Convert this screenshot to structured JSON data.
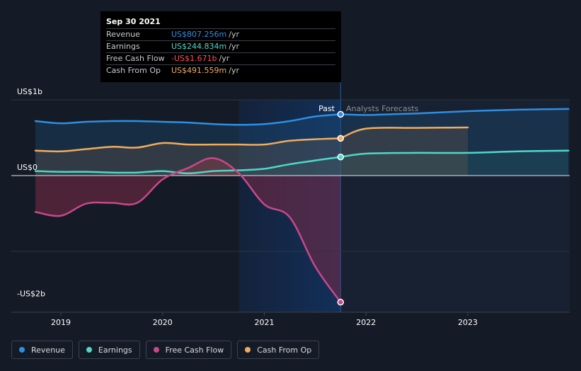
{
  "tooltip": {
    "date": "Sep 30 2021",
    "rows": [
      {
        "label": "Revenue",
        "value": "US$807.256m",
        "unit": "/yr",
        "color": "#2d8fe3"
      },
      {
        "label": "Earnings",
        "value": "US$244.834m",
        "unit": "/yr",
        "color": "#4fd8c9"
      },
      {
        "label": "Free Cash Flow",
        "value": "-US$1.671b",
        "unit": "/yr",
        "color": "#ff4d5e"
      },
      {
        "label": "Cash From Op",
        "value": "US$491.559m",
        "unit": "/yr",
        "color": "#f0ac5d"
      }
    ]
  },
  "labels": {
    "past": "Past",
    "forecast": "Analysts Forecasts"
  },
  "legend": [
    {
      "label": "Revenue",
      "color": "#2d8fe3"
    },
    {
      "label": "Earnings",
      "color": "#4fd8c9"
    },
    {
      "label": "Free Cash Flow",
      "color": "#c8488b"
    },
    {
      "label": "Cash From Op",
      "color": "#f0ac5d"
    }
  ],
  "chart_data": {
    "type": "line",
    "title": "",
    "xlabel": "",
    "ylabel": "",
    "xlim": [
      2018.7,
      2023.99
    ],
    "ylim": [
      -1.8,
      1.0
    ],
    "y_ticks": [
      {
        "value": 1.0,
        "label": "US$1b"
      },
      {
        "value": 0,
        "label": "US$0"
      },
      {
        "value": -1.67,
        "label": "-US$2b"
      }
    ],
    "x_ticks": [
      {
        "value": 2019,
        "label": "2019"
      },
      {
        "value": 2020,
        "label": "2020"
      },
      {
        "value": 2021,
        "label": "2021"
      },
      {
        "value": 2022,
        "label": "2022"
      },
      {
        "value": 2023,
        "label": "2023"
      }
    ],
    "gridlines": [
      1.0,
      0,
      -1.0
    ],
    "past_end": 2021.75,
    "highlight_start": 2020.75,
    "series": [
      {
        "name": "Revenue",
        "color": "#2d8fe3",
        "past": [
          [
            2018.75,
            0.72
          ],
          [
            2019.0,
            0.69
          ],
          [
            2019.25,
            0.71
          ],
          [
            2019.5,
            0.72
          ],
          [
            2019.75,
            0.72
          ],
          [
            2020.0,
            0.71
          ],
          [
            2020.25,
            0.7
          ],
          [
            2020.5,
            0.68
          ],
          [
            2020.75,
            0.67
          ],
          [
            2021.0,
            0.68
          ],
          [
            2021.25,
            0.72
          ],
          [
            2021.5,
            0.78
          ],
          [
            2021.75,
            0.81
          ]
        ],
        "forecast": [
          [
            2021.75,
            0.81
          ],
          [
            2022.0,
            0.8
          ],
          [
            2022.25,
            0.81
          ],
          [
            2022.5,
            0.82
          ],
          [
            2023.0,
            0.85
          ],
          [
            2023.5,
            0.87
          ],
          [
            2023.99,
            0.88
          ]
        ]
      },
      {
        "name": "Earnings",
        "color": "#4fd8c9",
        "past": [
          [
            2018.75,
            0.06
          ],
          [
            2019.0,
            0.05
          ],
          [
            2019.25,
            0.05
          ],
          [
            2019.5,
            0.04
          ],
          [
            2019.75,
            0.04
          ],
          [
            2020.0,
            0.06
          ],
          [
            2020.25,
            0.03
          ],
          [
            2020.5,
            0.06
          ],
          [
            2020.75,
            0.07
          ],
          [
            2021.0,
            0.09
          ],
          [
            2021.25,
            0.15
          ],
          [
            2021.5,
            0.2
          ],
          [
            2021.75,
            0.245
          ]
        ],
        "forecast": [
          [
            2021.75,
            0.245
          ],
          [
            2022.0,
            0.29
          ],
          [
            2022.5,
            0.3
          ],
          [
            2023.0,
            0.3
          ],
          [
            2023.5,
            0.32
          ],
          [
            2023.99,
            0.33
          ]
        ]
      },
      {
        "name": "Free Cash Flow",
        "color": "#c8488b",
        "past": [
          [
            2018.75,
            -0.48
          ],
          [
            2019.0,
            -0.53
          ],
          [
            2019.25,
            -0.37
          ],
          [
            2019.5,
            -0.36
          ],
          [
            2019.75,
            -0.36
          ],
          [
            2020.0,
            -0.05
          ],
          [
            2020.25,
            0.1
          ],
          [
            2020.5,
            0.23
          ],
          [
            2020.75,
            0.03
          ],
          [
            2021.0,
            -0.38
          ],
          [
            2021.25,
            -0.55
          ],
          [
            2021.5,
            -1.2
          ],
          [
            2021.75,
            -1.671
          ]
        ],
        "forecast": []
      },
      {
        "name": "Cash From Op",
        "color": "#f0ac5d",
        "past": [
          [
            2018.75,
            0.33
          ],
          [
            2019.0,
            0.32
          ],
          [
            2019.25,
            0.35
          ],
          [
            2019.5,
            0.38
          ],
          [
            2019.75,
            0.37
          ],
          [
            2020.0,
            0.43
          ],
          [
            2020.25,
            0.41
          ],
          [
            2020.5,
            0.41
          ],
          [
            2020.75,
            0.41
          ],
          [
            2021.0,
            0.41
          ],
          [
            2021.25,
            0.46
          ],
          [
            2021.5,
            0.48
          ],
          [
            2021.75,
            0.4916
          ]
        ],
        "forecast": [
          [
            2021.75,
            0.4916
          ],
          [
            2022.0,
            0.62
          ],
          [
            2022.5,
            0.63
          ],
          [
            2023.0,
            0.635
          ]
        ]
      }
    ]
  }
}
